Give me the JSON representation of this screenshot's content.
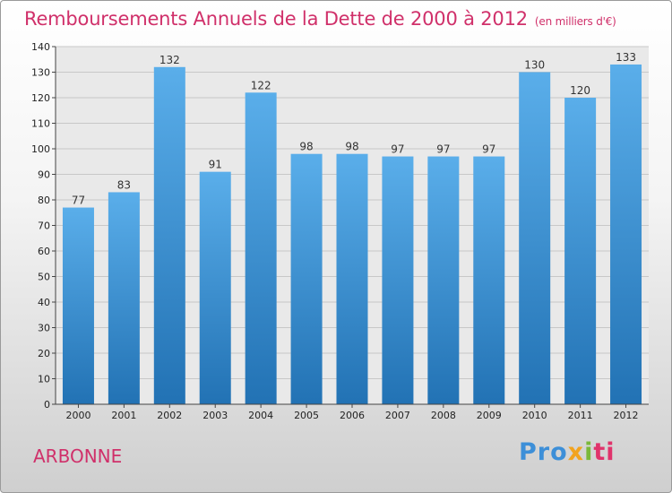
{
  "page": {
    "title": "Remboursements Annuels de la Dette de 2000 à 2012",
    "unit": "(en milliers d'€)",
    "town": "ARBONNE",
    "brand": [
      "Pro",
      "x",
      "i",
      "ti"
    ]
  },
  "chart_data": {
    "type": "bar",
    "title": "Remboursements Annuels de la Dette de 2000 à 2012 (en milliers d'€)",
    "xlabel": "",
    "ylabel": "",
    "categories": [
      "2000",
      "2001",
      "2002",
      "2003",
      "2004",
      "2005",
      "2006",
      "2007",
      "2008",
      "2009",
      "2010",
      "2011",
      "2012"
    ],
    "values": [
      77,
      83,
      132,
      91,
      122,
      98,
      98,
      97,
      97,
      97,
      130,
      120,
      133
    ],
    "ylim": [
      0,
      140
    ],
    "yticks": [
      0,
      10,
      20,
      30,
      40,
      50,
      60,
      70,
      80,
      90,
      100,
      110,
      120,
      130,
      140
    ],
    "grid": true,
    "colors": {
      "bar_light": "#5aaeea",
      "bar_dark": "#2272b4",
      "title": "#d0306a"
    }
  }
}
